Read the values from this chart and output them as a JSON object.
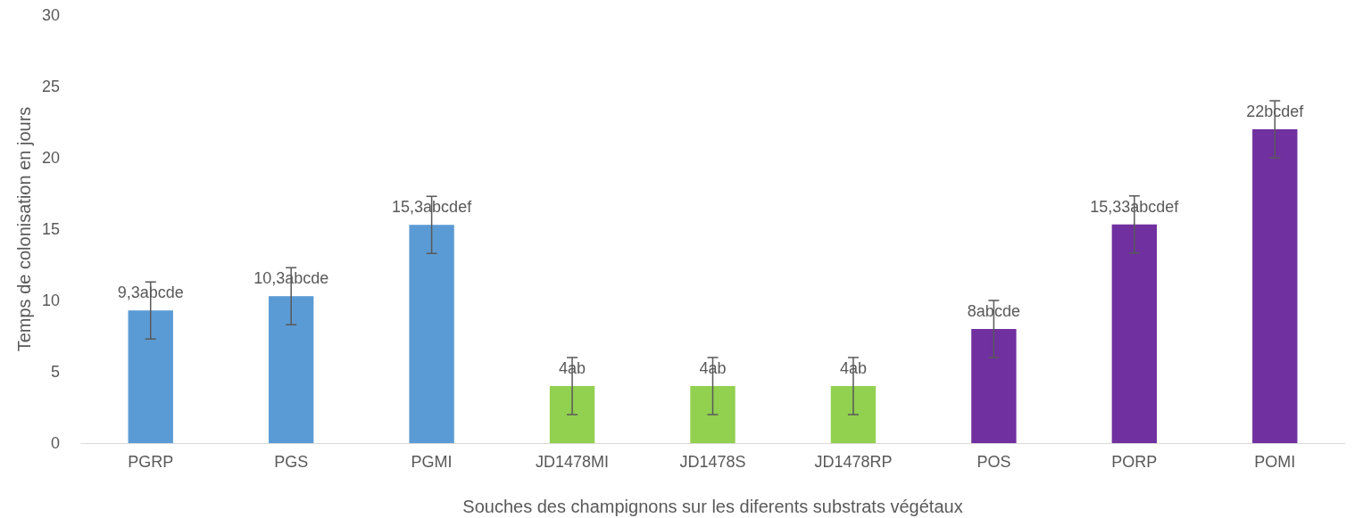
{
  "chart_data": {
    "type": "bar",
    "xlabel": "Souches des champignons sur les diferents substrats végétaux",
    "ylabel": "Temps de colonisation en jours",
    "categories": [
      "PGRP",
      "PGS",
      "PGMI",
      "JD1478MI",
      "JD1478S",
      "JD1478RP",
      "POS",
      "PORP",
      "POMI"
    ],
    "values": [
      9.3,
      10.3,
      15.3,
      4,
      4,
      4,
      8,
      15.33,
      22
    ],
    "colors": [
      "#5b9bd5",
      "#5b9bd5",
      "#5b9bd5",
      "#92d050",
      "#92d050",
      "#92d050",
      "#7030a0",
      "#7030a0",
      "#7030a0"
    ],
    "errors": [
      2,
      2,
      2,
      2,
      2,
      2,
      2,
      2,
      2
    ],
    "value_labels": [
      "9,3abcde",
      "10,3abcde",
      "15,3abcdef",
      "4ab",
      "4ab",
      "4ab",
      "8abcde",
      "15,33abcdef",
      "22bcdef"
    ],
    "ylim": [
      0,
      30
    ],
    "yticks": [
      0,
      5,
      10,
      15,
      20,
      25,
      30
    ],
    "grid": false
  }
}
